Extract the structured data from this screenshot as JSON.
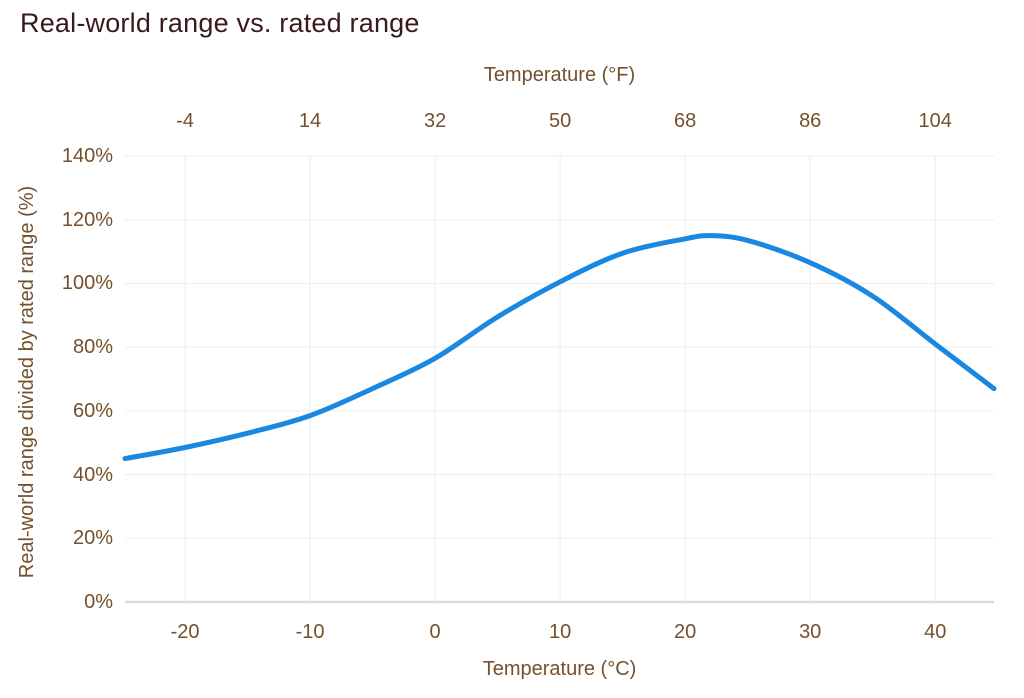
{
  "title": "Real-world range vs. rated range",
  "colors": {
    "background": "#ffffff",
    "title_text": "#3a191d",
    "axis_text": "#75502c",
    "line": "#1a87e0",
    "gridline": "#f0f0f0",
    "axis_line": "#e3d9d1"
  },
  "chart_data": {
    "type": "line",
    "title": "Real-world range vs. rated range",
    "grid": true,
    "legend": "none",
    "x_bottom": {
      "label": "Temperature (°C)",
      "tick_labels": [
        "-20",
        "-10",
        "0",
        "10",
        "20",
        "30",
        "40"
      ],
      "tick_values": [
        -20,
        -10,
        0,
        10,
        20,
        30,
        40
      ],
      "lim": [
        -24.8,
        44.7
      ]
    },
    "x_top": {
      "label": "Temperature (°F)",
      "tick_labels": [
        "-4",
        "14",
        "32",
        "50",
        "68",
        "86",
        "104"
      ]
    },
    "y": {
      "label": "Real-world range divided by rated range (%)",
      "tick_labels": [
        "0%",
        "20%",
        "40%",
        "60%",
        "80%",
        "100%",
        "120%",
        "140%"
      ],
      "tick_values": [
        0,
        20,
        40,
        60,
        80,
        100,
        120,
        140
      ],
      "lim": [
        0,
        140
      ]
    },
    "series": [
      {
        "points": [
          [
            -24.8,
            45
          ],
          [
            -20,
            48.5
          ],
          [
            -15,
            53
          ],
          [
            -10,
            58.5
          ],
          [
            -5,
            67
          ],
          [
            0,
            76.5
          ],
          [
            5,
            89.5
          ],
          [
            10,
            100.5
          ],
          [
            15,
            109.5
          ],
          [
            20,
            114
          ],
          [
            22,
            115
          ],
          [
            25,
            113.5
          ],
          [
            30,
            106.5
          ],
          [
            35,
            96
          ],
          [
            40,
            81
          ],
          [
            44.7,
            67
          ]
        ]
      }
    ]
  }
}
